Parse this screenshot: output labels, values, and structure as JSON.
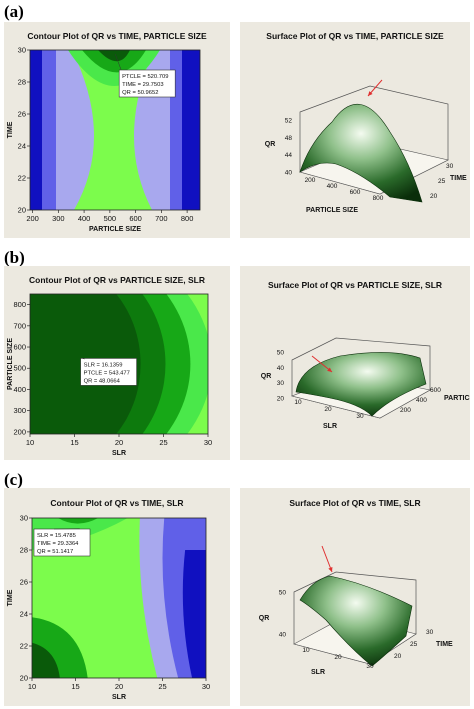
{
  "rows": [
    {
      "label": "(a)",
      "contour": {
        "title": "Contour Plot of QR vs TIME, PARTICLE SIZE",
        "xlabel": "PARTICLE SIZE",
        "ylabel": "TIME",
        "xticks": [
          "200",
          "300",
          "400",
          "500",
          "600",
          "700",
          "800"
        ],
        "yticks": [
          "20",
          "22",
          "24",
          "26",
          "28",
          "30"
        ],
        "xlim": [
          190,
          850
        ],
        "ylim": [
          20,
          30
        ],
        "tooltip": [
          "PTCLE = 520.709",
          "TIME = 29.7503",
          "QR = 50.9652"
        ],
        "tooltip_point": [
          520.709,
          29.7503
        ]
      },
      "surface": {
        "title": "Surface Plot of QR vs TIME, PARTICLE SIZE",
        "zlabel": "QR",
        "xlabel": "PARTICLE SIZE",
        "ylabel": "TIME",
        "zticks": [
          "40",
          "44",
          "48",
          "52"
        ],
        "xticks": [
          "200",
          "400",
          "600",
          "800"
        ],
        "yticks": [
          "20",
          "25",
          "30"
        ]
      }
    },
    {
      "label": "(b)",
      "contour": {
        "title": "Contour Plot of QR vs PARTICLE SIZE, SLR",
        "xlabel": "SLR",
        "ylabel": "PARTICLE SIZE",
        "xticks": [
          "10",
          "15",
          "20",
          "25",
          "30"
        ],
        "yticks": [
          "200",
          "300",
          "400",
          "500",
          "600",
          "700",
          "800"
        ],
        "xlim": [
          10,
          30
        ],
        "ylim": [
          190,
          850
        ],
        "tooltip": [
          "SLR = 16.1359",
          "PTCLE = 543.477",
          "QR = 48.0664"
        ],
        "tooltip_point": [
          16.1359,
          543.477
        ]
      },
      "surface": {
        "title": "Surface Plot of QR vs PARTICLE SIZE, SLR",
        "zlabel": "QR",
        "xlabel": "SLR",
        "ylabel": "PARTICLE SIZE",
        "zticks": [
          "20",
          "30",
          "40",
          "50"
        ],
        "xticks": [
          "10",
          "20",
          "30"
        ],
        "yticks": [
          "200",
          "400",
          "600"
        ]
      }
    },
    {
      "label": "(c)",
      "contour": {
        "title": "Contour Plot of QR vs TIME, SLR",
        "xlabel": "SLR",
        "ylabel": "TIME",
        "xticks": [
          "10",
          "15",
          "20",
          "25",
          "30"
        ],
        "yticks": [
          "20",
          "22",
          "24",
          "26",
          "28",
          "30"
        ],
        "xlim": [
          10,
          30
        ],
        "ylim": [
          20,
          30
        ],
        "tooltip": [
          "SLR = 15.4785",
          "TIME = 29.3364",
          "QR = 51.1417"
        ],
        "tooltip_point": [
          15.4785,
          29.3364
        ]
      },
      "surface": {
        "title": "Surface Plot of QR vs TIME, SLR",
        "zlabel": "QR",
        "xlabel": "SLR",
        "ylabel": "TIME",
        "zticks": [
          "40",
          "50"
        ],
        "xticks": [
          "10",
          "20",
          "30"
        ],
        "yticks": [
          "20",
          "25",
          "30"
        ]
      }
    }
  ],
  "colors": {
    "dark_green": "#0a5a0a",
    "mid_green": "#17a817",
    "light_green": "#4ae84a",
    "lime": "#7cfc4c",
    "pale_blue": "#a8a8ee",
    "mid_blue": "#6060e8",
    "dark_blue": "#1010c0",
    "panel_bg": "#ece9e0",
    "arrow": "#e03030"
  },
  "chart_data": [
    {
      "type": "heatmap",
      "title": "Contour Plot of QR vs TIME, PARTICLE SIZE",
      "xlabel": "PARTICLE SIZE",
      "ylabel": "TIME",
      "xlim": [
        190,
        850
      ],
      "ylim": [
        20,
        30
      ],
      "maximum": {
        "x": 520.709,
        "y": 29.7503,
        "z": 50.9652
      }
    },
    {
      "type": "heatmap",
      "title": "Contour Plot of QR vs PARTICLE SIZE, SLR",
      "xlabel": "SLR",
      "ylabel": "PARTICLE SIZE",
      "xlim": [
        10,
        30
      ],
      "ylim": [
        190,
        850
      ],
      "maximum": {
        "x": 16.1359,
        "y": 543.477,
        "z": 48.0664
      }
    },
    {
      "type": "heatmap",
      "title": "Contour Plot of QR vs TIME, SLR",
      "xlabel": "SLR",
      "ylabel": "TIME",
      "xlim": [
        10,
        30
      ],
      "ylim": [
        20,
        30
      ],
      "maximum": {
        "x": 15.4785,
        "y": 29.3364,
        "z": 51.1417
      }
    }
  ]
}
